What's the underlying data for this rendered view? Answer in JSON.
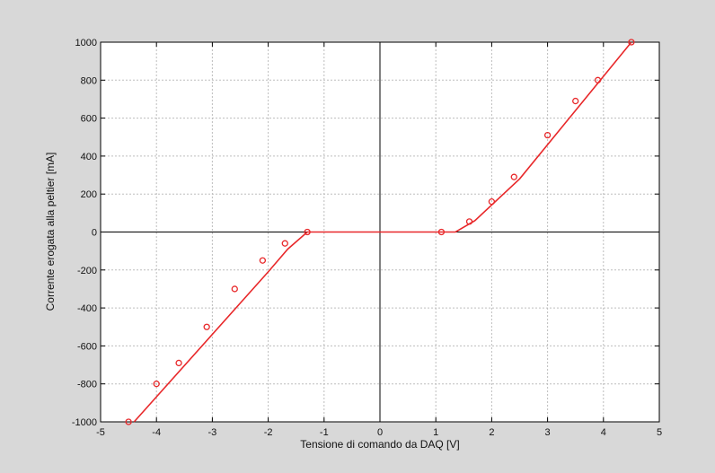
{
  "chart_data": {
    "type": "scatter",
    "title": "",
    "xlabel": "Tensione di comando da DAQ [V]",
    "ylabel": "Corrente erogata alla peltier [mA]",
    "xlim": [
      -5,
      5
    ],
    "ylim": [
      -1000,
      1000
    ],
    "xticks": [
      -5,
      -4,
      -3,
      -2,
      -1,
      0,
      1,
      2,
      3,
      4,
      5
    ],
    "yticks": [
      -1000,
      -800,
      -600,
      -400,
      -200,
      0,
      200,
      400,
      600,
      800,
      1000
    ],
    "xtick_labels": [
      "-5",
      "-4",
      "-3",
      "-2",
      "-1",
      "0",
      "1",
      "2",
      "3",
      "4",
      "5"
    ],
    "ytick_labels": [
      "-1000",
      "-800",
      "-600",
      "-400",
      "-200",
      "0",
      "200",
      "400",
      "600",
      "800",
      "1000"
    ],
    "grid": true,
    "colors": {
      "series": "#e8282a",
      "axes": "#000000",
      "grid": "#bdbdbd",
      "plot_bg": "#ffffff",
      "figure_bg": "#d8d8d8"
    },
    "series": [
      {
        "kind": "markers",
        "marker": "circle",
        "points": [
          {
            "x": -4.5,
            "y": -1000
          },
          {
            "x": -4.0,
            "y": -800
          },
          {
            "x": -3.6,
            "y": -690
          },
          {
            "x": -3.1,
            "y": -500
          },
          {
            "x": -2.6,
            "y": -300
          },
          {
            "x": -2.1,
            "y": -150
          },
          {
            "x": -1.7,
            "y": -60
          },
          {
            "x": -1.3,
            "y": 0
          },
          {
            "x": 1.1,
            "y": 0
          },
          {
            "x": 1.6,
            "y": 55
          },
          {
            "x": 2.0,
            "y": 160
          },
          {
            "x": 2.4,
            "y": 290
          },
          {
            "x": 3.0,
            "y": 510
          },
          {
            "x": 3.5,
            "y": 690
          },
          {
            "x": 3.9,
            "y": 800
          },
          {
            "x": 4.5,
            "y": 1000
          }
        ]
      },
      {
        "kind": "line",
        "points": [
          {
            "x": -4.4,
            "y": -1000
          },
          {
            "x": -2.0,
            "y": -210
          },
          {
            "x": -1.65,
            "y": -90
          },
          {
            "x": -1.3,
            "y": 0
          },
          {
            "x": 1.35,
            "y": 0
          },
          {
            "x": 1.7,
            "y": 60
          },
          {
            "x": 2.5,
            "y": 280
          },
          {
            "x": 4.5,
            "y": 1000
          }
        ]
      }
    ]
  }
}
